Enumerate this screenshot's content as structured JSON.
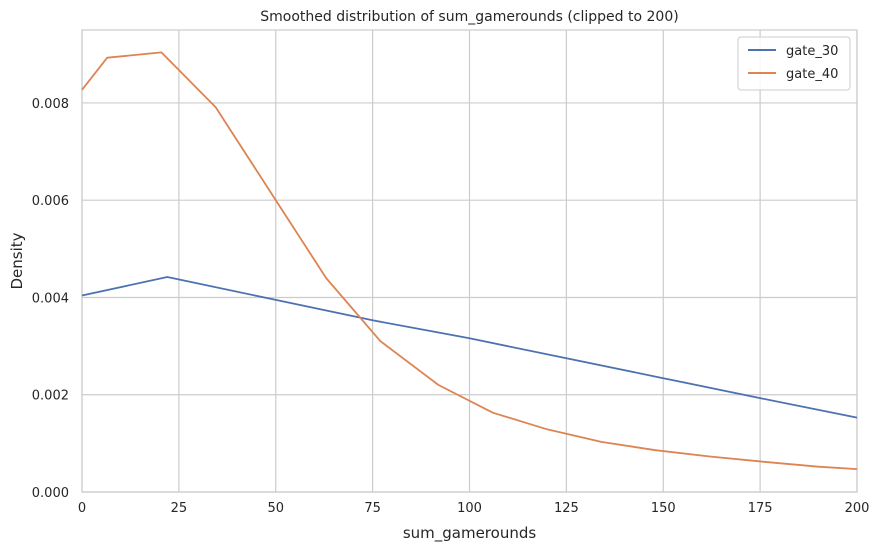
{
  "chart_data": {
    "type": "line",
    "title": "Smoothed distribution of sum_gamerounds (clipped to 200)",
    "xlabel": "sum_gamerounds",
    "ylabel": "Density",
    "xlim": [
      0,
      200
    ],
    "ylim": [
      0,
      0.0095
    ],
    "xticks": [
      0,
      25,
      50,
      75,
      100,
      125,
      150,
      175,
      200
    ],
    "yticks": [
      0,
      0.002,
      0.004,
      0.006,
      0.008
    ],
    "ytick_labels": [
      "0.000",
      "0.002",
      "0.004",
      "0.006",
      "0.008"
    ],
    "grid": true,
    "legend_position": "top-right",
    "series": [
      {
        "name": "gate_30",
        "color": "#4c72b0",
        "points": [
          [
            0,
            0.00404
          ],
          [
            22,
            0.00442
          ],
          [
            50,
            0.00395
          ],
          [
            75,
            0.00353
          ],
          [
            100,
            0.00316
          ],
          [
            125,
            0.00275
          ],
          [
            150,
            0.00234
          ],
          [
            175,
            0.00193
          ],
          [
            200,
            0.00153
          ]
        ]
      },
      {
        "name": "gate_40",
        "color": "#dd8452",
        "points": [
          [
            0,
            0.00827
          ],
          [
            6.5,
            0.00893
          ],
          [
            20.5,
            0.00904
          ],
          [
            34.5,
            0.00791
          ],
          [
            50,
            0.006
          ],
          [
            63,
            0.0044
          ],
          [
            77,
            0.0031
          ],
          [
            92,
            0.0022
          ],
          [
            106,
            0.00163
          ],
          [
            120,
            0.00129
          ],
          [
            134,
            0.00103
          ],
          [
            148,
            0.00086
          ],
          [
            162,
            0.00073
          ],
          [
            176,
            0.00062
          ],
          [
            190,
            0.00052
          ],
          [
            200,
            0.00047
          ]
        ]
      }
    ]
  }
}
